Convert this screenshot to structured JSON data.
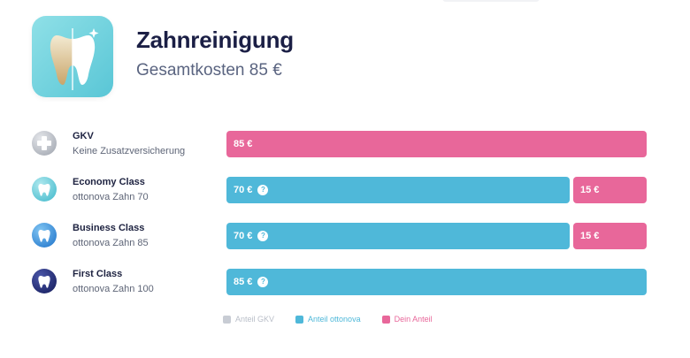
{
  "header": {
    "title": "Zahnreinigung",
    "subtitle": "Gesamtkosten 85 €",
    "icon": "tooth-cleaning-icon"
  },
  "colors": {
    "gkv": "#e8679a",
    "ottonova": "#4fb8d9",
    "own": "#e8679a",
    "legend_gkv": "#c8ccd4"
  },
  "rows": [
    {
      "name": "GKV",
      "desc": "Keine Zusatzversicherung",
      "icon": "plus-cross-icon",
      "segments": [
        {
          "label": "85 €",
          "kind": "own",
          "fraction": 1.0,
          "help": false
        }
      ]
    },
    {
      "name": "Economy Class",
      "desc": "ottonova Zahn 70",
      "icon": "tooth-icon",
      "segments": [
        {
          "label": "70 €",
          "kind": "ottonova",
          "fraction": 0.8235,
          "help": true
        },
        {
          "label": "15 €",
          "kind": "own",
          "fraction": 0.1765,
          "help": false
        }
      ]
    },
    {
      "name": "Business Class",
      "desc": "ottonova Zahn 85",
      "icon": "tooth-icon",
      "segments": [
        {
          "label": "70 €",
          "kind": "ottonova",
          "fraction": 0.8235,
          "help": true
        },
        {
          "label": "15 €",
          "kind": "own",
          "fraction": 0.1765,
          "help": false
        }
      ]
    },
    {
      "name": "First Class",
      "desc": "ottonova Zahn 100",
      "icon": "tooth-icon",
      "segments": [
        {
          "label": "85 €",
          "kind": "ottonova",
          "fraction": 1.0,
          "help": true
        }
      ]
    }
  ],
  "help_glyph": "?",
  "legend": [
    {
      "label": "Anteil GKV",
      "color": "#c8ccd4",
      "text_color": "#b9bec8"
    },
    {
      "label": "Anteil ottonova",
      "color": "#4fb8d9",
      "text_color": "#4fb8d9"
    },
    {
      "label": "Dein Anteil",
      "color": "#e8679a",
      "text_color": "#e8679a"
    }
  ]
}
